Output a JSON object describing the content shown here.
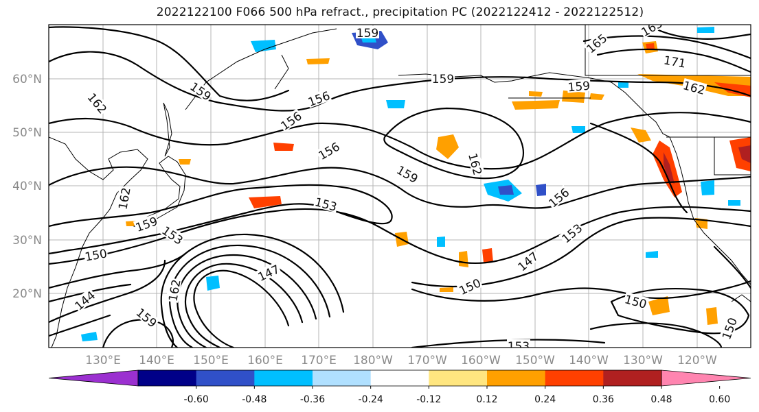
{
  "title": "2022122100 F066 500 hPa refract., precipitation PC (2022122412 - 2022122512)",
  "lat_labels": [
    "60°N",
    "50°N",
    "40°N",
    "30°N",
    "20°N"
  ],
  "lon_labels": [
    "130°E",
    "140°E",
    "150°E",
    "160°E",
    "170°E",
    "180°W",
    "170°W",
    "160°W",
    "150°W",
    "140°W",
    "130°W",
    "120°W"
  ],
  "contour_labels": [
    "159",
    "165",
    "165",
    "171",
    "162",
    "159",
    "159",
    "162",
    "159",
    "156",
    "156",
    "159",
    "162",
    "153",
    "162",
    "159",
    "156",
    "156",
    "153",
    "150",
    "147",
    "150",
    "144",
    "162",
    "159",
    "153",
    "150",
    "147",
    "153",
    "150"
  ],
  "colorbar": {
    "colors": [
      "#9b30d0",
      "#000088",
      "#3050c8",
      "#00bfff",
      "#b0e0ff",
      "#ffffff",
      "#ffe680",
      "#ffa000",
      "#ff4000",
      "#b02020",
      "#ff85b0"
    ],
    "tick_labels": [
      "-0.60",
      "-0.48",
      "-0.36",
      "-0.24",
      "-0.12",
      "0.12",
      "0.24",
      "0.36",
      "0.48",
      "0.60"
    ]
  },
  "shading_colors": {
    "pos_light": "#ffe680",
    "pos_med": "#ffa000",
    "pos_high": "#ff4000",
    "pos_max": "#b02020",
    "neg_light": "#b0e0ff",
    "neg_med": "#00bfff",
    "neg_high": "#3050c8"
  }
}
